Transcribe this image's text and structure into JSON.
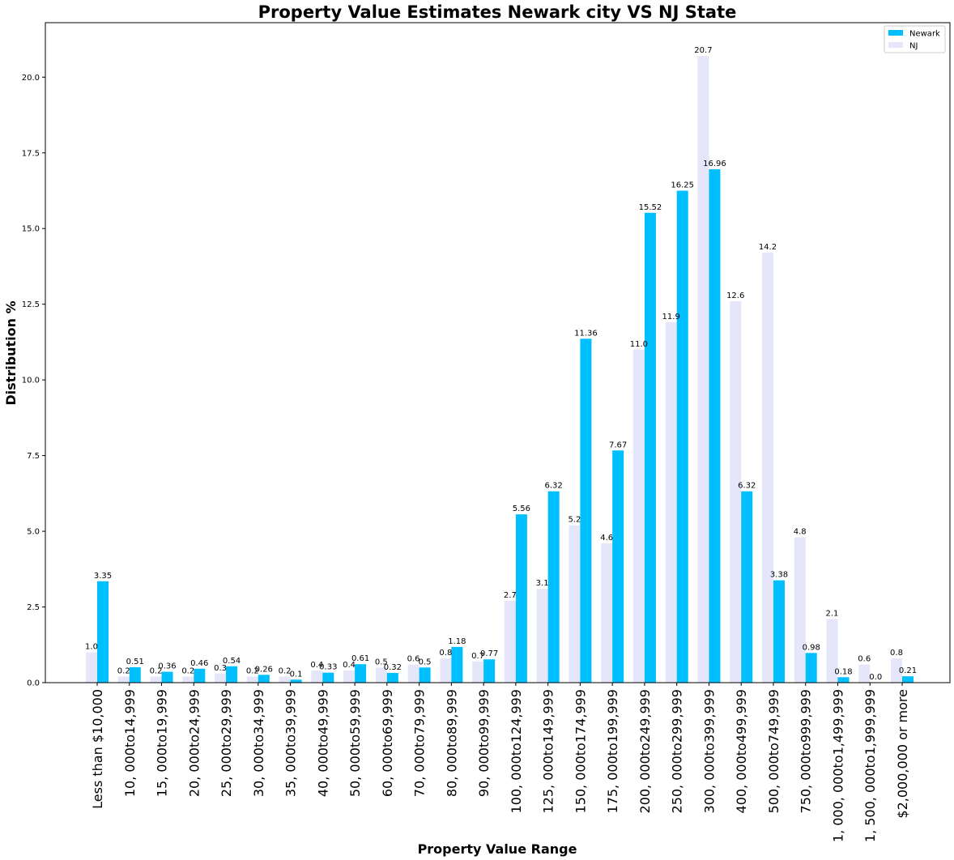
{
  "chart_data": {
    "type": "bar",
    "title": "Property Value Estimates Newark city VS NJ State",
    "xlabel": "Property Value Range",
    "ylabel": "Distribution %",
    "ylim": [
      0,
      21.8
    ],
    "yticks": [
      "0.0",
      "2.5",
      "5.0",
      "7.5",
      "10.0",
      "12.5",
      "15.0",
      "17.5",
      "20.0"
    ],
    "ytick_values": [
      0,
      2.5,
      5,
      7.5,
      10,
      12.5,
      15,
      17.5,
      20
    ],
    "grid": false,
    "legend_position": "top-right",
    "categories": [
      "Less than $10,000",
      "10, 000to14,999",
      "15, 000to19,999",
      "20, 000to24,999",
      "25, 000to29,999",
      "30, 000to34,999",
      "35, 000to39,999",
      "40, 000to49,999",
      "50, 000to59,999",
      "60, 000to69,999",
      "70, 000to79,999",
      "80, 000to89,999",
      "90, 000to99,999",
      "100, 000to124,999",
      "125, 000to149,999",
      "150, 000to174,999",
      "175, 000to199,999",
      "200, 000to249,999",
      "250, 000to299,999",
      "300, 000to399,999",
      "400, 000to499,999",
      "500, 000to749,999",
      "750, 000to999,999",
      "1, 000, 000to1,499,999",
      "1, 500, 000to1,999,999",
      "$2,000,000 or more"
    ],
    "series": [
      {
        "name": "NJ",
        "color": "#e6e6fa",
        "values": [
          1.0,
          0.2,
          0.2,
          0.2,
          0.3,
          0.2,
          0.2,
          0.4,
          0.4,
          0.5,
          0.6,
          0.8,
          0.7,
          2.7,
          3.1,
          5.2,
          4.6,
          11.0,
          11.9,
          20.7,
          12.6,
          14.2,
          4.8,
          2.1,
          0.6,
          0.8
        ],
        "labels": [
          "1.0",
          "0.2",
          "0.2",
          "0.2",
          "0.3",
          "0.2",
          "0.2",
          "0.4",
          "0.4",
          "0.5",
          "0.6",
          "0.8",
          "0.7",
          "2.7",
          "3.1",
          "5.2",
          "4.6",
          "11.0",
          "11.9",
          "20.7",
          "12.6",
          "14.2",
          "4.8",
          "2.1",
          "0.6",
          "0.8"
        ]
      },
      {
        "name": "Newark",
        "color": "#00bfff",
        "values": [
          3.35,
          0.51,
          0.36,
          0.46,
          0.54,
          0.26,
          0.1,
          0.33,
          0.61,
          0.32,
          0.5,
          1.18,
          0.77,
          5.56,
          6.32,
          11.36,
          7.67,
          15.52,
          16.25,
          16.96,
          6.32,
          3.38,
          0.98,
          0.18,
          0.0,
          0.21
        ],
        "labels": [
          "3.35",
          "0.51",
          "0.36",
          "0.46",
          "0.54",
          "0.26",
          "0.1",
          "0.33",
          "0.61",
          "0.32",
          "0.5",
          "1.18",
          "0.77",
          "5.56",
          "6.32",
          "11.36",
          "7.67",
          "15.52",
          "16.25",
          "16.96",
          "6.32",
          "3.38",
          "0.98",
          "0.18",
          "0.0",
          "0.21"
        ]
      }
    ],
    "legend": [
      {
        "name": "Newark",
        "color": "#00bfff"
      },
      {
        "name": "NJ",
        "color": "#e6e6fa"
      }
    ]
  }
}
